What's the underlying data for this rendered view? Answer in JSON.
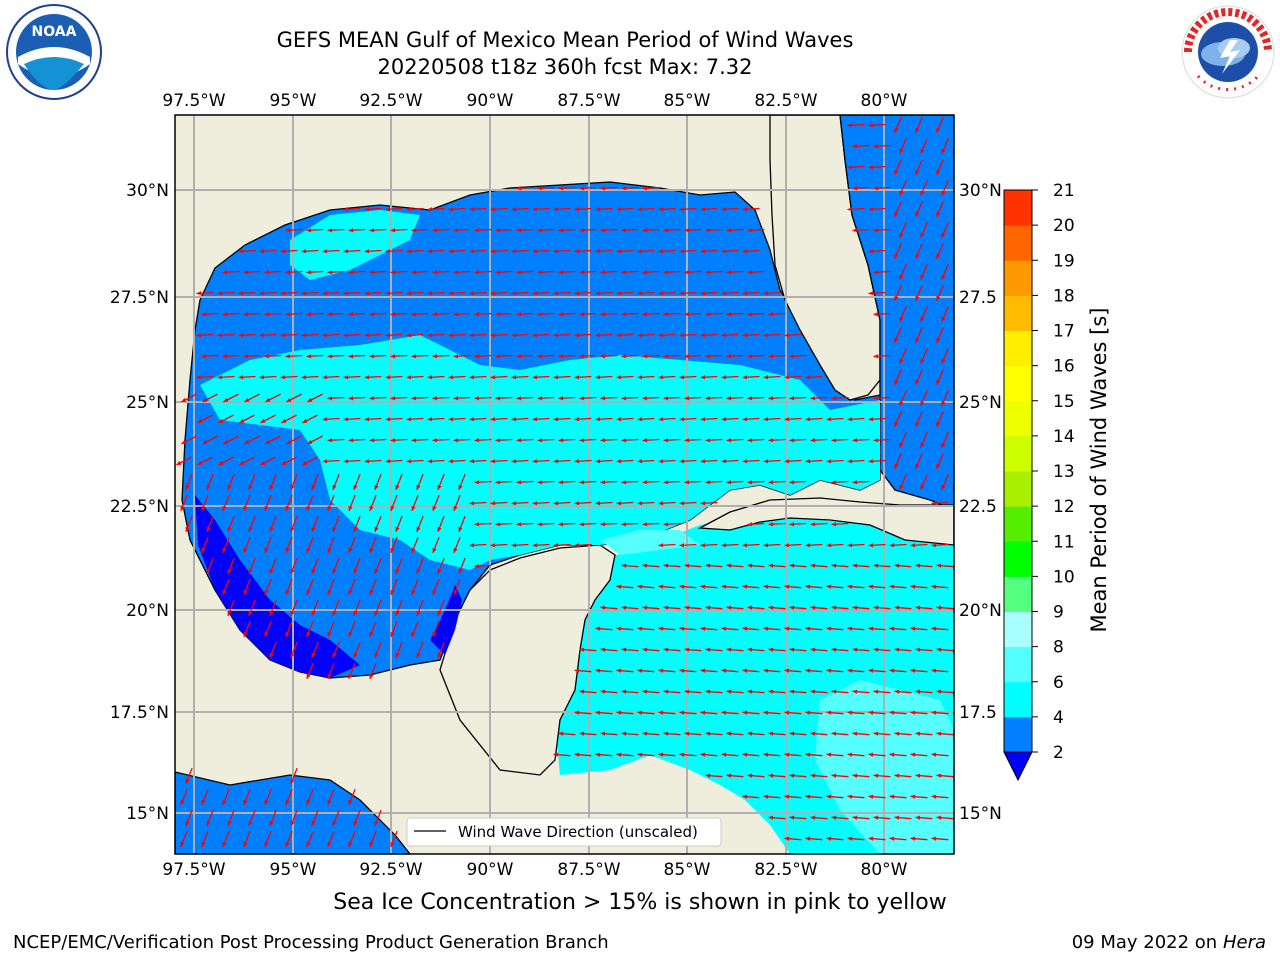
{
  "header": {
    "title_line1": "GEFS MEAN Gulf of Mexico Mean Period of Wind Waves",
    "title_line2": "20220508 t18z 360h fcst   Max: 7.32"
  },
  "logos": {
    "left": {
      "icon": "noaa-logo-icon",
      "text": "NOAA"
    },
    "right": {
      "icon": "nws-logo-icon",
      "text": "NATIONAL WEATHER SERVICE"
    }
  },
  "map": {
    "lon_ticks": [
      "97.5°W",
      "95°W",
      "92.5°W",
      "90°W",
      "87.5°W",
      "85°W",
      "82.5°W",
      "80°W"
    ],
    "lat_ticks_left": [
      "30°N",
      "27.5°N",
      "25°N",
      "22.5°N",
      "20°N",
      "17.5°N",
      "15°N"
    ],
    "lat_ticks_right": [
      "30°N",
      "27.5",
      "25°N",
      "22.5",
      "20°N",
      "17.5",
      "15°N"
    ],
    "legend_label": "Wind Wave Direction (unscaled)",
    "colors": {
      "land": "#efeddc",
      "level_2_4": "#0080ff",
      "level_4_6": "#00ffff",
      "level_6_8": "#55ffff",
      "below_2": "#0000ff",
      "arrow": "#ff0000"
    }
  },
  "colorbar": {
    "label": "Mean Period of Wind Waves [s]",
    "ticks": [
      "2",
      "4",
      "6",
      "8",
      "9",
      "10",
      "11",
      "12",
      "13",
      "14",
      "15",
      "16",
      "17",
      "18",
      "19",
      "20",
      "21"
    ],
    "colors": [
      "#0080ff",
      "#00ffff",
      "#55ffff",
      "#aaffff",
      "#55ff80",
      "#00ff00",
      "#55ee00",
      "#aaee00",
      "#ccff00",
      "#eeff00",
      "#ffff00",
      "#ffee00",
      "#ffbb00",
      "#ff9900",
      "#ff6600",
      "#ff3300",
      "#ff0000"
    ],
    "extend_color": "#0000ff"
  },
  "footer": {
    "note": "Sea Ice Concentration > 15% is shown in pink to yellow",
    "credit": "NCEP/EMC/Verification Post Processing Product Generation Branch",
    "date": "09 May 2022 on",
    "host": "Hera"
  }
}
